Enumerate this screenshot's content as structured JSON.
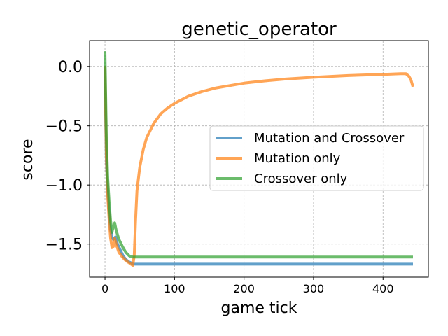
{
  "chart_data": {
    "type": "line",
    "title": "genetic_operator",
    "xlabel": "game tick",
    "ylabel": "score",
    "xlim": [
      -22.2,
      465.2
    ],
    "ylim": [
      -1.78,
      0.22
    ],
    "xticks": [
      0,
      100,
      200,
      300,
      400
    ],
    "xtick_labels": [
      "0",
      "100",
      "200",
      "300",
      "400"
    ],
    "yticks": [
      0.0,
      -0.5,
      -1.0,
      -1.5
    ],
    "ytick_labels": [
      "0.0",
      "−0.5",
      "−1.0",
      "−1.5"
    ],
    "grid": true,
    "legend_position": "center-right",
    "series": [
      {
        "name": "Mutation and Crossover",
        "color": "#1f77b4",
        "points": [
          [
            0,
            0.0
          ],
          [
            2,
            -0.8
          ],
          [
            4,
            -1.05
          ],
          [
            6,
            -1.25
          ],
          [
            8,
            -1.38
          ],
          [
            10,
            -1.44
          ],
          [
            12,
            -1.46
          ],
          [
            15,
            -1.44
          ],
          [
            18,
            -1.5
          ],
          [
            22,
            -1.55
          ],
          [
            26,
            -1.6
          ],
          [
            30,
            -1.63
          ],
          [
            34,
            -1.65
          ],
          [
            38,
            -1.66
          ],
          [
            40,
            -1.67
          ],
          [
            100,
            -1.67
          ],
          [
            200,
            -1.67
          ],
          [
            300,
            -1.67
          ],
          [
            443,
            -1.67
          ]
        ]
      },
      {
        "name": "Mutation only",
        "color": "#ff7f0e",
        "points": [
          [
            0,
            0.0
          ],
          [
            2,
            -0.75
          ],
          [
            4,
            -1.1
          ],
          [
            6,
            -1.3
          ],
          [
            8,
            -1.45
          ],
          [
            10,
            -1.53
          ],
          [
            12,
            -1.52
          ],
          [
            14,
            -1.45
          ],
          [
            16,
            -1.5
          ],
          [
            20,
            -1.57
          ],
          [
            25,
            -1.61
          ],
          [
            30,
            -1.64
          ],
          [
            35,
            -1.66
          ],
          [
            40,
            -1.68
          ],
          [
            42,
            -1.6
          ],
          [
            44,
            -1.3
          ],
          [
            46,
            -1.05
          ],
          [
            50,
            -0.85
          ],
          [
            55,
            -0.7
          ],
          [
            60,
            -0.6
          ],
          [
            70,
            -0.48
          ],
          [
            80,
            -0.4
          ],
          [
            90,
            -0.35
          ],
          [
            100,
            -0.31
          ],
          [
            120,
            -0.25
          ],
          [
            140,
            -0.21
          ],
          [
            160,
            -0.18
          ],
          [
            180,
            -0.16
          ],
          [
            200,
            -0.14
          ],
          [
            230,
            -0.12
          ],
          [
            260,
            -0.105
          ],
          [
            300,
            -0.09
          ],
          [
            350,
            -0.075
          ],
          [
            400,
            -0.065
          ],
          [
            425,
            -0.06
          ],
          [
            433,
            -0.06
          ],
          [
            437,
            -0.08
          ],
          [
            440,
            -0.11
          ],
          [
            443,
            -0.17
          ]
        ]
      },
      {
        "name": "Crossover only",
        "color": "#2ca02c",
        "points": [
          [
            0,
            0.13
          ],
          [
            2,
            -0.6
          ],
          [
            4,
            -0.95
          ],
          [
            6,
            -1.15
          ],
          [
            8,
            -1.3
          ],
          [
            10,
            -1.4
          ],
          [
            12,
            -1.35
          ],
          [
            14,
            -1.32
          ],
          [
            16,
            -1.38
          ],
          [
            20,
            -1.46
          ],
          [
            25,
            -1.52
          ],
          [
            30,
            -1.57
          ],
          [
            35,
            -1.6
          ],
          [
            40,
            -1.61
          ],
          [
            100,
            -1.61
          ],
          [
            200,
            -1.61
          ],
          [
            300,
            -1.61
          ],
          [
            443,
            -1.61
          ]
        ]
      }
    ]
  }
}
